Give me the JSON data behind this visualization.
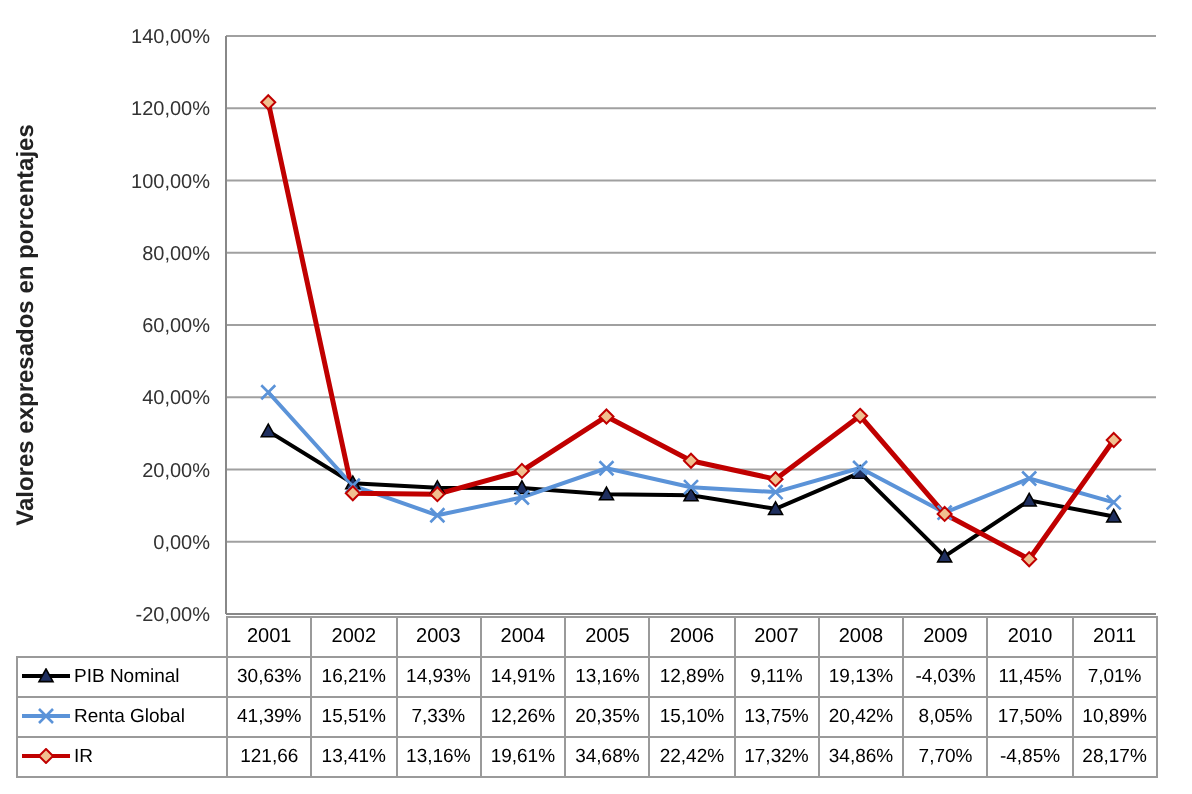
{
  "chart_data": {
    "type": "line",
    "ylabel": "Valores expresados en porcentajes",
    "categories": [
      "2001",
      "2002",
      "2003",
      "2004",
      "2005",
      "2006",
      "2007",
      "2008",
      "2009",
      "2010",
      "2011"
    ],
    "series": [
      {
        "name": "PIB Nominal",
        "color": "#000000",
        "marker": "triangle",
        "values": [
          30.63,
          16.21,
          14.93,
          14.91,
          13.16,
          12.89,
          9.11,
          19.13,
          -4.03,
          11.45,
          7.01
        ],
        "value_labels": [
          "30,63%",
          "16,21%",
          "14,93%",
          "14,91%",
          "13,16%",
          "12,89%",
          "9,11%",
          "19,13%",
          "-4,03%",
          "11,45%",
          "7,01%"
        ]
      },
      {
        "name": "Renta Global",
        "color": "#5b93d8",
        "marker": "cross",
        "values": [
          41.39,
          15.51,
          7.33,
          12.26,
          20.35,
          15.1,
          13.75,
          20.42,
          8.05,
          17.5,
          10.89
        ],
        "value_labels": [
          "41,39%",
          "15,51%",
          "7,33%",
          "12,26%",
          "20,35%",
          "15,10%",
          "13,75%",
          "20,42%",
          "8,05%",
          "17,50%",
          "10,89%"
        ]
      },
      {
        "name": "IR",
        "color": "#c00000",
        "marker": "diamond",
        "values": [
          121.66,
          13.41,
          13.16,
          19.61,
          34.68,
          22.42,
          17.32,
          34.86,
          7.7,
          -4.85,
          28.17
        ],
        "value_labels": [
          "121,66",
          "13,41%",
          "13,16%",
          "19,61%",
          "34,68%",
          "22,42%",
          "17,32%",
          "34,86%",
          "7,70%",
          "-4,85%",
          "28,17%"
        ]
      }
    ],
    "ylim": [
      -20,
      140
    ],
    "yticks": [
      {
        "value": -20,
        "label": "-20,00%"
      },
      {
        "value": 0,
        "label": "0,00%"
      },
      {
        "value": 20,
        "label": "20,00%"
      },
      {
        "value": 40,
        "label": "40,00%"
      },
      {
        "value": 60,
        "label": "60,00%"
      },
      {
        "value": 80,
        "label": "80,00%"
      },
      {
        "value": 100,
        "label": "100,00%"
      },
      {
        "value": 120,
        "label": "120,00%"
      },
      {
        "value": 140,
        "label": "140,00%"
      }
    ],
    "grid": "y",
    "legend": "bottom",
    "line_style": "solid"
  }
}
